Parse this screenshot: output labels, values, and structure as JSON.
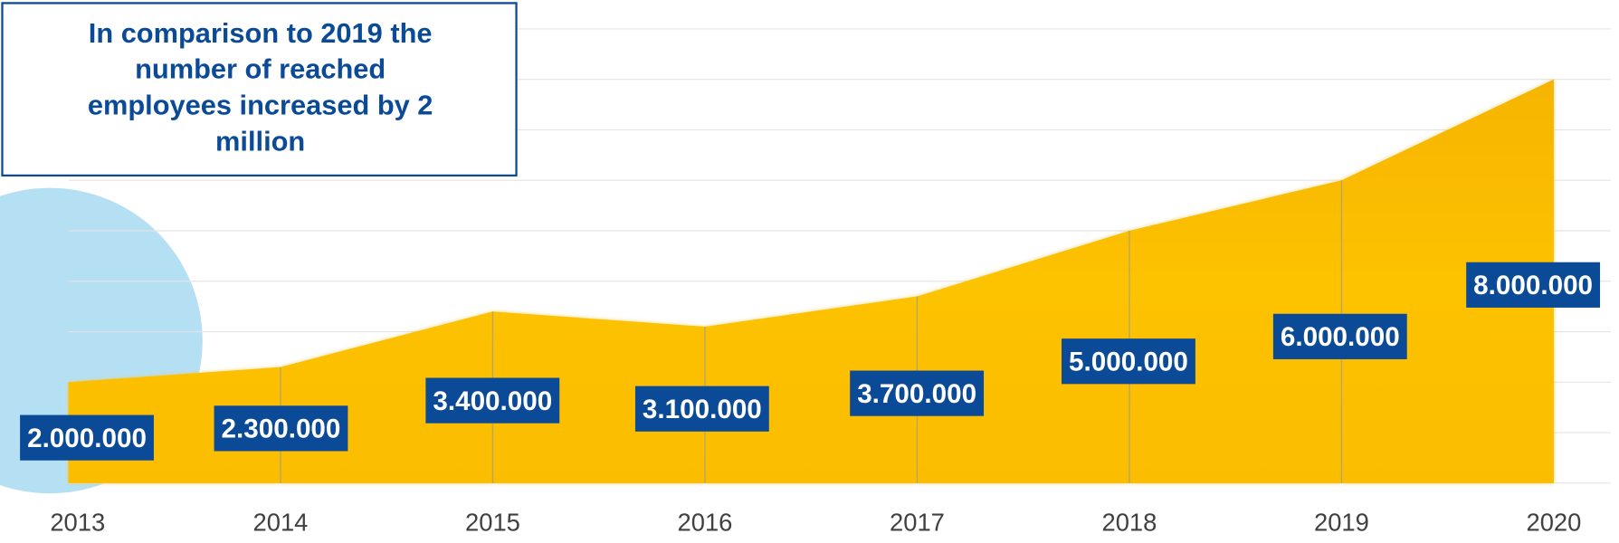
{
  "chart_data": {
    "type": "area",
    "annotation": [
      "In comparison to 2019 the",
      "number of reached",
      "employees increased by 2",
      "million"
    ],
    "categories": [
      "2013",
      "2014",
      "2015",
      "2016",
      "2017",
      "2018",
      "2019",
      "2020"
    ],
    "values": [
      2000000,
      2300000,
      3400000,
      3100000,
      3700000,
      5000000,
      6000000,
      8000000
    ],
    "value_labels": [
      "2.000.000",
      "2.300.000",
      "3.400.000",
      "3.100.000",
      "3.700.000",
      "5.000.000",
      "6.000.000",
      "8.000.000"
    ],
    "color": "#fbbd00",
    "label_color": "#0b4a96",
    "ylim": [
      0,
      9000000
    ],
    "yticks": [
      0,
      1000000,
      2000000,
      3000000,
      4000000,
      5000000,
      6000000,
      7000000,
      8000000,
      9000000
    ],
    "grid": true
  }
}
